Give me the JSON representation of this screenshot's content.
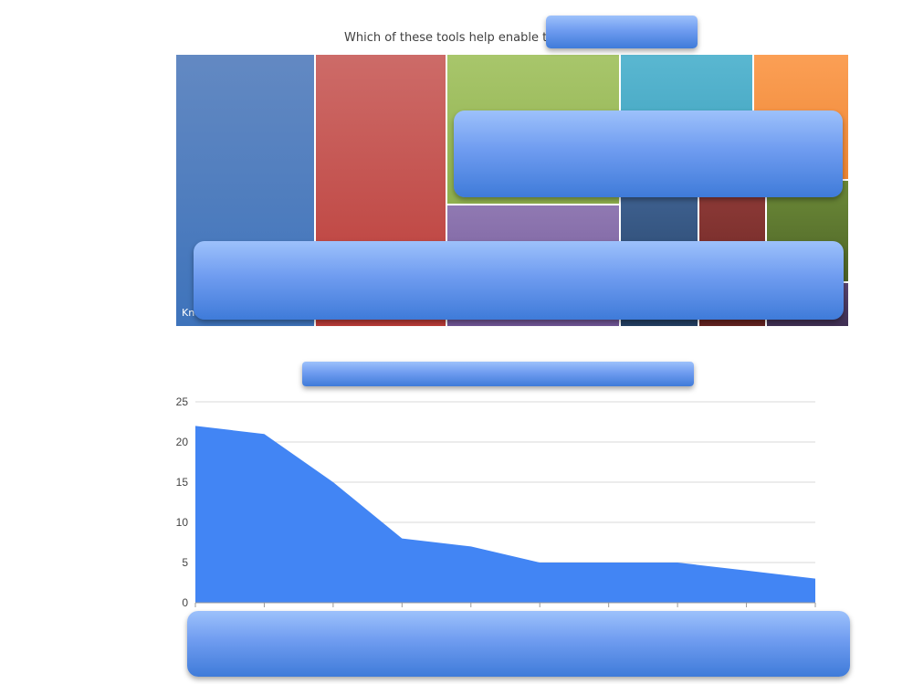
{
  "chart_data": [
    {
      "type": "treemap",
      "title": "Which of these tools help enable the",
      "tiles": [
        {
          "label": "Kno",
          "color": "#4f81bd",
          "value": 22
        },
        {
          "label": "",
          "color": "#c0504d",
          "value": 21
        },
        {
          "label": "",
          "color": "#9bbb59",
          "value": 15
        },
        {
          "label": "",
          "color": "#8064a2",
          "value": 8
        },
        {
          "label": "",
          "color": "#4bacc6",
          "value": 7
        },
        {
          "label": "",
          "color": "#f79646",
          "value": 5
        },
        {
          "label": "",
          "color": "#2c4d75",
          "value": 5
        },
        {
          "label": "",
          "color": "#772c2a",
          "value": 5
        },
        {
          "label": "",
          "color": "#5f7530",
          "value": 4
        },
        {
          "label": "",
          "color": "#4d3b62",
          "value": 3
        }
      ]
    },
    {
      "type": "area",
      "title": "",
      "ylim": [
        0,
        25
      ],
      "yticks": [
        0,
        5,
        10,
        15,
        20,
        25
      ],
      "grid": true,
      "color": "#4285f4",
      "series": [
        {
          "values": [
            22,
            21,
            15,
            8,
            7,
            5,
            5,
            5,
            4,
            3
          ]
        }
      ]
    }
  ]
}
